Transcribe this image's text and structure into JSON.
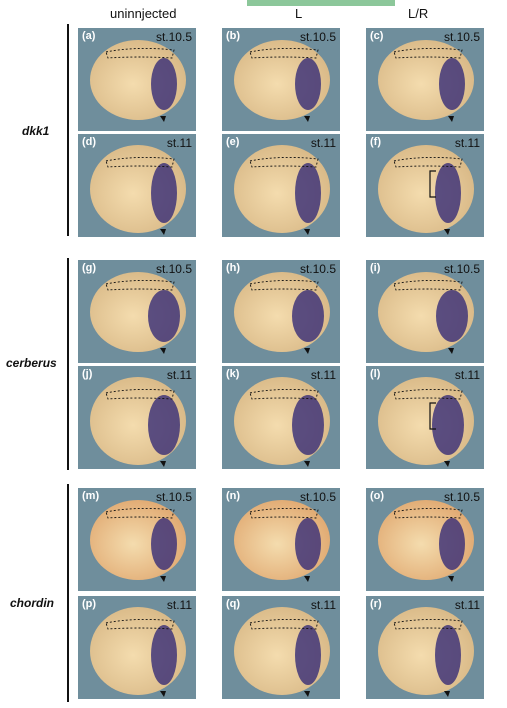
{
  "columns": [
    "uninnjected",
    "L",
    "L/R"
  ],
  "groups": [
    {
      "label": "dkk1"
    },
    {
      "label": "cerberus"
    },
    {
      "label": "chordin"
    }
  ],
  "panels": [
    {
      "label": "(a)",
      "stage": "st.10.5"
    },
    {
      "label": "(b)",
      "stage": "st.10.5"
    },
    {
      "label": "(c)",
      "stage": "st.10.5"
    },
    {
      "label": "(d)",
      "stage": "st.11"
    },
    {
      "label": "(e)",
      "stage": "st.11"
    },
    {
      "label": "(f)",
      "stage": "st.11"
    },
    {
      "label": "(g)",
      "stage": "st.10.5"
    },
    {
      "label": "(h)",
      "stage": "st.10.5"
    },
    {
      "label": "(i)",
      "stage": "st.10.5"
    },
    {
      "label": "(j)",
      "stage": "st.11"
    },
    {
      "label": "(k)",
      "stage": "st.11"
    },
    {
      "label": "(l)",
      "stage": "st.11"
    },
    {
      "label": "(m)",
      "stage": "st.10.5"
    },
    {
      "label": "(n)",
      "stage": "st.10.5"
    },
    {
      "label": "(o)",
      "stage": "st.10.5"
    },
    {
      "label": "(p)",
      "stage": "st.11"
    },
    {
      "label": "(q)",
      "stage": "st.11"
    },
    {
      "label": "(r)",
      "stage": "st.11"
    }
  ],
  "colors": {
    "background_blue": "#6f8e9c",
    "embryo_tan": "#d8b886",
    "embryo_orange": "#e0a870",
    "stain_purple": "#3a2f78"
  }
}
